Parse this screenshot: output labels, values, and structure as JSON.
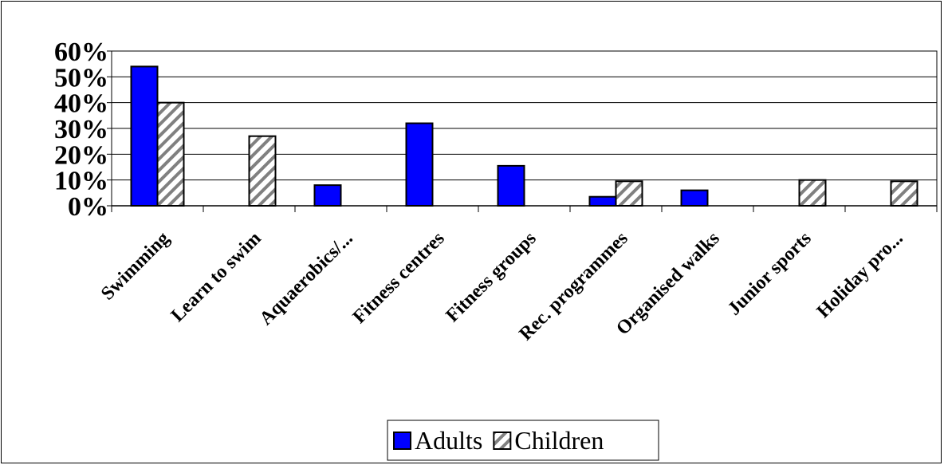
{
  "chart_data": {
    "type": "bar",
    "categories": [
      "Swimming",
      "Learn to swim",
      "Aquaerobics/...",
      "Fitness centres",
      "Fitness groups",
      "Rec. programmes",
      "Organised walks",
      "Junior sports",
      "Holiday pro..."
    ],
    "series": [
      {
        "name": "Adults",
        "values": [
          54,
          0,
          8,
          32,
          15.5,
          3.5,
          6,
          0,
          0
        ],
        "color": "#0000ff",
        "pattern": "solid"
      },
      {
        "name": "Children",
        "values": [
          40,
          27,
          0,
          0,
          0,
          9.5,
          0,
          10,
          9.5
        ],
        "color": "#808080",
        "pattern": "diagonal-hatch"
      }
    ],
    "y_ticks": [
      "0%",
      "10%",
      "20%",
      "30%",
      "40%",
      "50%",
      "60%"
    ],
    "ylim": [
      0,
      60
    ],
    "y_unit": "%",
    "grid": true,
    "legend_position": "bottom-center"
  }
}
